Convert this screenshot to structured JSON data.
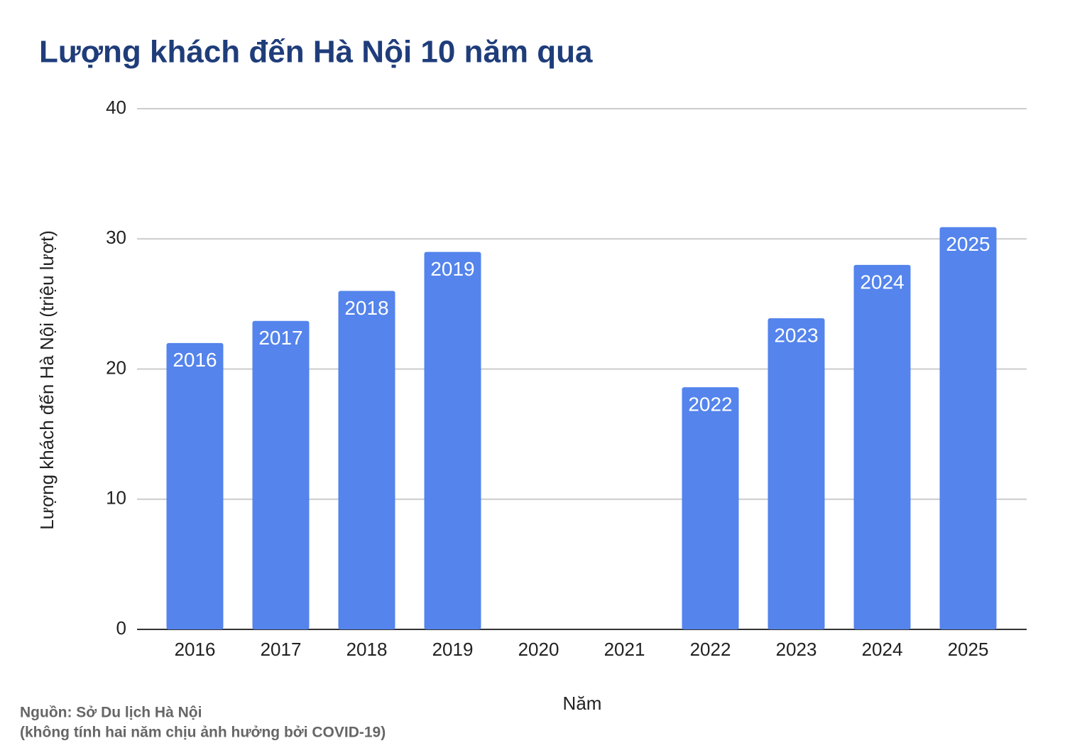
{
  "chart_data": {
    "type": "bar",
    "title": "Lượng khách đến Hà Nội 10 năm qua",
    "x_label": "Năm",
    "y_label": "Lượng khách đến Hà Nội (triệu lượt)",
    "source": "Nguồn: Sở Du lịch Hà Nội",
    "note": "(không tính hai năm chịu ảnh hưởng bởi COVID-19)",
    "categories": [
      "2016",
      "2017",
      "2018",
      "2019",
      "2020",
      "2021",
      "2022",
      "2023",
      "2024",
      "2025"
    ],
    "values": [
      22.0,
      23.7,
      26.0,
      29.0,
      null,
      null,
      18.6,
      23.9,
      28.0,
      30.9
    ],
    "color": "#5484ec",
    "ylim": [
      0,
      40
    ],
    "yticks": [
      0,
      10,
      20,
      30,
      40
    ],
    "grid": true
  }
}
